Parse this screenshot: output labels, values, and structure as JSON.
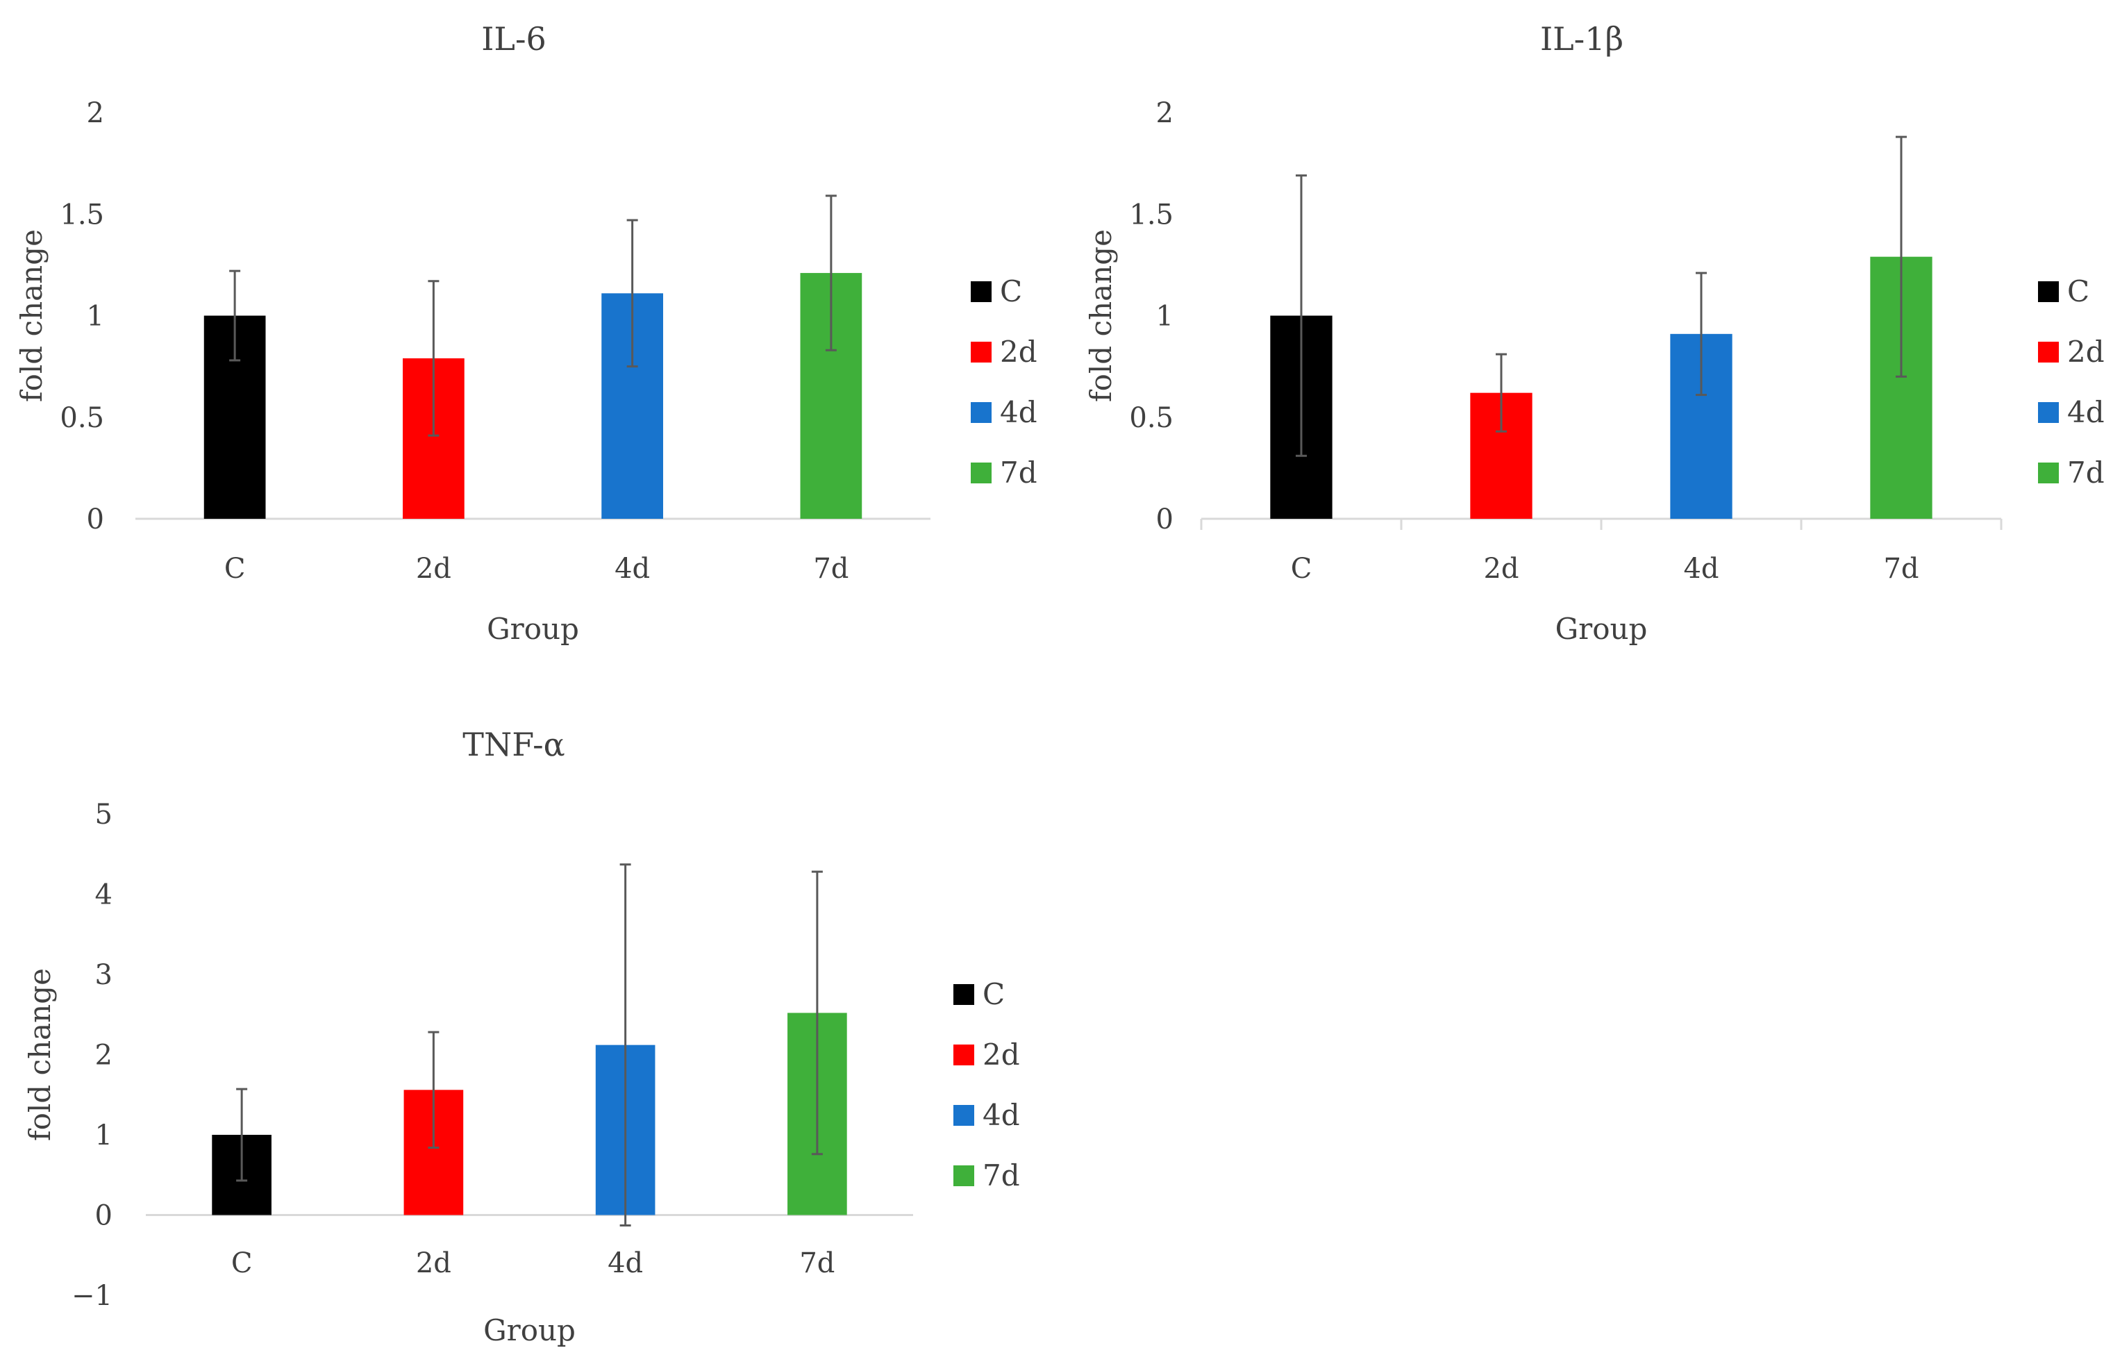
{
  "chart_data": [
    {
      "type": "bar",
      "title": "IL-6",
      "xlabel": "Group",
      "ylabel": "fold change",
      "categories": [
        "C",
        "2d",
        "4d",
        "7d"
      ],
      "values": [
        1.0,
        0.79,
        1.11,
        1.21
      ],
      "errors": [
        0.22,
        0.38,
        0.36,
        0.38
      ],
      "colors": [
        "#000000",
        "#ff0000",
        "#1874cd",
        "#3fb03a"
      ],
      "ylim": [
        0,
        2
      ],
      "yticks": [
        0,
        0.5,
        1,
        1.5,
        2
      ],
      "ytick_labels": [
        "0",
        "0.5",
        "1",
        "1.5",
        "2"
      ],
      "grid": false,
      "legend": {
        "position": "right",
        "labels": [
          "C",
          "2d",
          "4d",
          "7d"
        ]
      }
    },
    {
      "type": "bar",
      "title": "IL-1β",
      "xlabel": "Group",
      "ylabel": "fold change",
      "categories": [
        "C",
        "2d",
        "4d",
        "7d"
      ],
      "values": [
        1.0,
        0.62,
        0.91,
        1.29
      ],
      "errors": [
        0.69,
        0.19,
        0.3,
        0.59
      ],
      "colors": [
        "#000000",
        "#ff0000",
        "#1874cd",
        "#3fb03a"
      ],
      "ylim": [
        0,
        2
      ],
      "yticks": [
        0,
        0.5,
        1,
        1.5,
        2
      ],
      "ytick_labels": [
        "0",
        "0.5",
        "1",
        "1.5",
        "2"
      ],
      "grid": false,
      "legend": {
        "position": "right",
        "labels": [
          "C",
          "2d",
          "4d",
          "7d"
        ]
      }
    },
    {
      "type": "bar",
      "title": "TNF-α",
      "xlabel": "Group",
      "ylabel": "fold change",
      "categories": [
        "C",
        "2d",
        "4d",
        "7d"
      ],
      "values": [
        1.0,
        1.56,
        2.12,
        2.52
      ],
      "errors": [
        0.57,
        0.72,
        2.25,
        1.76
      ],
      "colors": [
        "#000000",
        "#ff0000",
        "#1874cd",
        "#3fb03a"
      ],
      "ylim": [
        -1,
        5
      ],
      "yticks": [
        -1,
        0,
        1,
        2,
        3,
        4,
        5
      ],
      "ytick_labels": [
        "−1",
        "0",
        "1",
        "2",
        "3",
        "4",
        "5"
      ],
      "grid": false,
      "legend": {
        "position": "right",
        "labels": [
          "C",
          "2d",
          "4d",
          "7d"
        ]
      }
    }
  ]
}
